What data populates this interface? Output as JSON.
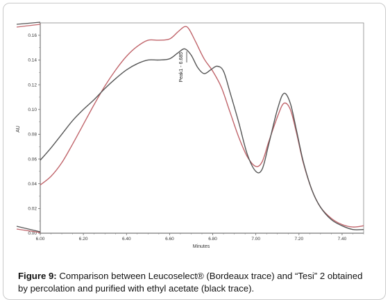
{
  "chart_data": {
    "type": "line",
    "title": "",
    "xlabel": "Minutes",
    "ylabel": "AU",
    "xlim": [
      6.0,
      7.5
    ],
    "ylim": [
      0.0,
      0.17
    ],
    "x_ticks": [
      "6.00",
      "6.20",
      "6.40",
      "6.60",
      "6.80",
      "7.00",
      "7.20",
      "7.40"
    ],
    "y_ticks": [
      "0.00",
      "0.02",
      "0.04",
      "0.06",
      "0.08",
      "0.10",
      "0.12",
      "0.14",
      "0.16"
    ],
    "grid": false,
    "annotations": [
      {
        "text": "Peak1 - 6.685",
        "x": 6.66,
        "y": 0.122
      }
    ],
    "series": [
      {
        "color": "#c0646a",
        "points": [
          [
            6.0,
            0.039
          ],
          [
            6.05,
            0.046
          ],
          [
            6.1,
            0.057
          ],
          [
            6.15,
            0.072
          ],
          [
            6.2,
            0.088
          ],
          [
            6.25,
            0.104
          ],
          [
            6.3,
            0.119
          ],
          [
            6.35,
            0.132
          ],
          [
            6.4,
            0.143
          ],
          [
            6.45,
            0.151
          ],
          [
            6.5,
            0.156
          ],
          [
            6.55,
            0.156
          ],
          [
            6.6,
            0.157
          ],
          [
            6.64,
            0.163
          ],
          [
            6.67,
            0.167
          ],
          [
            6.69,
            0.165
          ],
          [
            6.72,
            0.155
          ],
          [
            6.76,
            0.141
          ],
          [
            6.8,
            0.131
          ],
          [
            6.84,
            0.118
          ],
          [
            6.88,
            0.098
          ],
          [
            6.92,
            0.078
          ],
          [
            6.96,
            0.062
          ],
          [
            7.0,
            0.054
          ],
          [
            7.03,
            0.058
          ],
          [
            7.06,
            0.074
          ],
          [
            7.1,
            0.094
          ],
          [
            7.13,
            0.105
          ],
          [
            7.16,
            0.1
          ],
          [
            7.19,
            0.08
          ],
          [
            7.22,
            0.057
          ],
          [
            7.26,
            0.035
          ],
          [
            7.3,
            0.021
          ],
          [
            7.35,
            0.012
          ],
          [
            7.4,
            0.007
          ],
          [
            7.45,
            0.005
          ],
          [
            7.5,
            0.006
          ]
        ]
      },
      {
        "color": "#555555",
        "points": [
          [
            6.0,
            0.059
          ],
          [
            6.05,
            0.069
          ],
          [
            6.1,
            0.08
          ],
          [
            6.15,
            0.091
          ],
          [
            6.2,
            0.1
          ],
          [
            6.25,
            0.108
          ],
          [
            6.3,
            0.117
          ],
          [
            6.35,
            0.125
          ],
          [
            6.4,
            0.132
          ],
          [
            6.45,
            0.137
          ],
          [
            6.5,
            0.14
          ],
          [
            6.55,
            0.14
          ],
          [
            6.6,
            0.141
          ],
          [
            6.64,
            0.146
          ],
          [
            6.67,
            0.149
          ],
          [
            6.7,
            0.144
          ],
          [
            6.73,
            0.134
          ],
          [
            6.76,
            0.129
          ],
          [
            6.79,
            0.132
          ],
          [
            6.82,
            0.135
          ],
          [
            6.85,
            0.131
          ],
          [
            6.88,
            0.114
          ],
          [
            6.92,
            0.09
          ],
          [
            6.96,
            0.064
          ],
          [
            7.0,
            0.05
          ],
          [
            7.03,
            0.052
          ],
          [
            7.06,
            0.072
          ],
          [
            7.1,
            0.1
          ],
          [
            7.13,
            0.113
          ],
          [
            7.16,
            0.105
          ],
          [
            7.19,
            0.082
          ],
          [
            7.22,
            0.058
          ],
          [
            7.26,
            0.035
          ],
          [
            7.3,
            0.021
          ],
          [
            7.35,
            0.011
          ],
          [
            7.4,
            0.006
          ],
          [
            7.45,
            0.003
          ],
          [
            7.5,
            0.003
          ]
        ]
      }
    ]
  },
  "caption": {
    "label": "Figure 9:",
    "text": " Comparison between Leucoselect® (Bordeaux trace) and “Tesi” 2 obtained by percolation and purified with ethyl acetate (black trace)."
  }
}
